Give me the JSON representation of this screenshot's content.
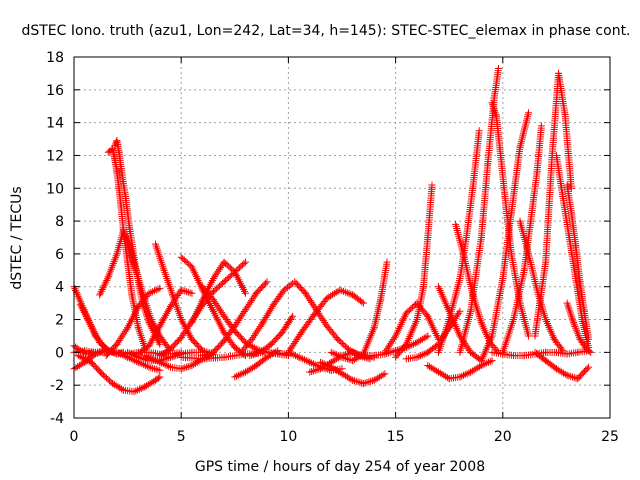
{
  "chart_data": {
    "type": "scatter",
    "title": "dSTEC Iono. truth (azu1, Lon=242, Lat=34, h=145): STEC-STEC_elemax in phase cont.",
    "xlabel": "GPS time / hours of day 254 of year 2008",
    "ylabel": "dSTEC  / TECUs",
    "xlim": [
      0,
      25
    ],
    "ylim": [
      -4,
      18
    ],
    "xticks": [
      0,
      5,
      10,
      15,
      20,
      25
    ],
    "yticks": [
      -4,
      -2,
      0,
      2,
      4,
      6,
      8,
      10,
      12,
      14,
      16,
      18
    ],
    "grid": true,
    "legend": "none",
    "marker": "+",
    "color": "#ff0000",
    "arcs": [
      {
        "x": [
          0.0,
          0.5,
          1.0,
          1.5,
          2.0,
          2.3
        ],
        "y": [
          4.0,
          2.5,
          1.0,
          0.2,
          -0.1,
          0.0
        ]
      },
      {
        "x": [
          0.0,
          0.3,
          0.6,
          0.9
        ],
        "y": [
          0.4,
          0.1,
          -0.1,
          0.0
        ]
      },
      {
        "x": [
          0.0,
          0.5,
          1.0,
          1.5,
          2.0,
          2.5,
          3.0,
          3.5,
          4.0
        ],
        "y": [
          -1.0,
          -0.6,
          -0.1,
          0.1,
          0.0,
          -0.3,
          -0.6,
          -0.9,
          -1.1
        ]
      },
      {
        "x": [
          0.2,
          0.8,
          1.3,
          1.8,
          2.3,
          2.8,
          3.3,
          3.8,
          4.0
        ],
        "y": [
          -0.2,
          -0.6,
          -1.3,
          -1.9,
          -2.3,
          -2.4,
          -2.1,
          -1.7,
          -1.5
        ]
      },
      {
        "x": [
          0.0,
          0.5,
          1.0,
          1.5,
          2.0,
          2.5,
          3.0,
          3.5,
          4.0,
          4.5,
          5.0
        ],
        "y": [
          0.0,
          0.1,
          0.0,
          0.1,
          0.0,
          -0.1,
          0.0,
          0.0,
          -0.1,
          -0.1,
          0.0
        ]
      },
      {
        "x": [
          0.3,
          0.8,
          1.2,
          1.6,
          2.0
        ],
        "y": [
          2.9,
          1.6,
          0.6,
          0.1,
          -0.1
        ]
      },
      {
        "x": [
          1.6,
          1.8,
          1.9,
          2.0,
          2.1,
          2.2,
          2.3,
          2.5,
          2.7,
          3.0,
          3.3
        ],
        "y": [
          12.2,
          12.4,
          11.8,
          11.0,
          10.0,
          8.8,
          7.5,
          5.5,
          3.5,
          1.5,
          0.3
        ]
      },
      {
        "x": [
          1.9,
          2.0,
          2.1,
          2.2,
          2.4,
          2.6,
          2.9,
          3.2,
          3.5,
          4.0
        ],
        "y": [
          12.6,
          12.9,
          12.2,
          11.2,
          9.5,
          7.5,
          5.0,
          3.0,
          1.8,
          0.5
        ]
      },
      {
        "x": [
          1.2,
          1.6,
          2.0,
          2.3,
          2.6,
          3.0
        ],
        "y": [
          3.5,
          4.6,
          6.0,
          7.4,
          6.5,
          4.5
        ]
      },
      {
        "x": [
          2.4,
          2.7,
          3.0,
          3.3,
          3.6,
          4.0,
          4.5
        ],
        "y": [
          7.0,
          5.8,
          4.5,
          3.2,
          2.0,
          1.0,
          0.1
        ]
      },
      {
        "x": [
          1.5,
          2.0,
          2.5,
          3.0,
          3.5,
          4.0
        ],
        "y": [
          -0.2,
          0.5,
          1.5,
          2.8,
          3.6,
          3.9
        ]
      },
      {
        "x": [
          2.5,
          3.0,
          3.5,
          4.0,
          4.5,
          5.0,
          5.5,
          6.0
        ],
        "y": [
          0.0,
          -0.3,
          -0.5,
          -0.5,
          -0.3,
          -0.1,
          0.0,
          0.0
        ]
      },
      {
        "x": [
          3.8,
          4.2,
          4.6,
          5.0,
          5.5,
          6.0,
          6.5
        ],
        "y": [
          6.6,
          5.0,
          3.5,
          2.0,
          0.8,
          0.1,
          -0.1
        ]
      },
      {
        "x": [
          3.0,
          3.5,
          4.0,
          4.5,
          5.0,
          5.5
        ],
        "y": [
          -0.1,
          0.4,
          1.6,
          2.8,
          3.8,
          3.6
        ]
      },
      {
        "x": [
          3.3,
          4.0,
          4.5,
          5.0,
          5.5,
          6.0,
          6.5
        ],
        "y": [
          -0.2,
          -0.6,
          -0.9,
          -1.0,
          -0.8,
          -0.4,
          -0.1
        ]
      },
      {
        "x": [
          5.0,
          5.5,
          6.0,
          6.5,
          7.0,
          7.5,
          8.0
        ],
        "y": [
          5.8,
          5.2,
          3.8,
          2.5,
          1.2,
          0.3,
          -0.2
        ]
      },
      {
        "x": [
          4.0,
          4.5,
          5.0,
          5.5,
          6.0,
          6.5,
          7.0,
          7.5,
          8.0
        ],
        "y": [
          -0.2,
          0.2,
          0.9,
          1.9,
          2.9,
          3.7,
          4.3,
          4.9,
          5.5
        ]
      },
      {
        "x": [
          6.0,
          6.5,
          7.0,
          7.5,
          8.0,
          8.5,
          9.0
        ],
        "y": [
          -0.2,
          0.0,
          0.7,
          1.6,
          2.6,
          3.6,
          4.3
        ]
      },
      {
        "x": [
          5.5,
          6.0,
          6.5,
          7.0,
          7.5,
          8.0
        ],
        "y": [
          1.8,
          3.2,
          4.5,
          5.5,
          4.9,
          3.6
        ]
      },
      {
        "x": [
          6.0,
          6.5,
          7.0,
          7.5,
          8.0,
          8.5,
          9.0,
          9.5,
          10.0
        ],
        "y": [
          4.0,
          3.2,
          2.2,
          1.3,
          0.6,
          0.2,
          0.0,
          -0.1,
          -0.2
        ]
      },
      {
        "x": [
          5.0,
          6.0,
          7.0,
          8.0,
          9.0,
          10.0
        ],
        "y": [
          -0.3,
          -0.4,
          -0.3,
          -0.1,
          0.0,
          -0.1
        ]
      },
      {
        "x": [
          7.5,
          8.0,
          8.5,
          9.0,
          9.5
        ],
        "y": [
          -1.5,
          -1.2,
          -0.8,
          -0.3,
          0.1
        ]
      },
      {
        "x": [
          7.8,
          8.3,
          8.8,
          9.3,
          9.8,
          10.2
        ],
        "y": [
          0.0,
          0.8,
          1.8,
          2.9,
          3.8,
          4.2
        ]
      },
      {
        "x": [
          8.2,
          8.7,
          9.2,
          9.7,
          10.0,
          10.2
        ],
        "y": [
          -0.2,
          0.0,
          0.5,
          1.2,
          1.8,
          2.2
        ]
      },
      {
        "x": [
          10.3,
          10.8,
          11.3,
          11.8,
          12.3,
          12.8,
          13.3,
          13.8
        ],
        "y": [
          4.3,
          3.6,
          2.6,
          1.6,
          0.8,
          0.2,
          -0.2,
          -0.4
        ]
      },
      {
        "x": [
          10.0,
          10.6,
          11.2,
          11.8,
          12.4,
          13.0,
          13.5
        ],
        "y": [
          0.0,
          1.2,
          2.3,
          3.3,
          3.8,
          3.5,
          3.0
        ]
      },
      {
        "x": [
          10.0,
          10.5,
          11.0,
          11.5,
          12.0,
          12.5
        ],
        "y": [
          0.0,
          -0.3,
          -0.6,
          -0.9,
          -1.1,
          -1.0
        ]
      },
      {
        "x": [
          11.0,
          11.5,
          12.0,
          12.5,
          13.0,
          13.5,
          14.0
        ],
        "y": [
          -1.2,
          -1.0,
          -0.6,
          -0.2,
          0.0,
          -0.2,
          -0.3
        ]
      },
      {
        "x": [
          11.5,
          12.0,
          12.5,
          13.0,
          13.5,
          14.0,
          14.5
        ],
        "y": [
          -0.6,
          -0.9,
          -1.3,
          -1.7,
          -1.9,
          -1.7,
          -1.3
        ]
      },
      {
        "x": [
          12.0,
          12.5,
          13.0,
          13.5,
          14.0,
          14.3,
          14.6
        ],
        "y": [
          0.0,
          -0.3,
          -0.5,
          -0.1,
          1.5,
          3.2,
          5.5
        ]
      },
      {
        "x": [
          13.5,
          14.0,
          14.5,
          15.0,
          15.5,
          16.0,
          16.5
        ],
        "y": [
          -0.2,
          -0.2,
          -0.1,
          0.1,
          0.3,
          0.6,
          1.0
        ]
      },
      {
        "x": [
          14.5,
          15.0,
          15.5,
          16.0,
          16.5,
          17.0
        ],
        "y": [
          0.0,
          1.0,
          2.4,
          3.0,
          2.2,
          0.8
        ]
      },
      {
        "x": [
          15.0,
          15.5,
          16.0,
          16.3,
          16.5,
          16.7
        ],
        "y": [
          -0.3,
          0.5,
          2.0,
          4.0,
          7.0,
          10.2
        ]
      },
      {
        "x": [
          15.5,
          16.0,
          16.5,
          17.0,
          17.5,
          18.0
        ],
        "y": [
          -0.4,
          -0.3,
          0.0,
          0.5,
          1.5,
          2.5
        ]
      },
      {
        "x": [
          16.5,
          17.0,
          17.5,
          18.0,
          18.5,
          19.0,
          19.5
        ],
        "y": [
          -0.8,
          -1.2,
          -1.6,
          -1.5,
          -1.2,
          -0.8,
          -0.5
        ]
      },
      {
        "x": [
          17.0,
          17.5,
          18.0,
          18.5,
          19.0
        ],
        "y": [
          4.0,
          2.5,
          1.0,
          0.0,
          -0.5
        ]
      },
      {
        "x": [
          17.0,
          17.5,
          18.0,
          18.3,
          18.6,
          18.9
        ],
        "y": [
          0.0,
          2.0,
          4.5,
          7.0,
          10.0,
          13.5
        ]
      },
      {
        "x": [
          17.8,
          18.2,
          18.6,
          19.0,
          19.4,
          19.8
        ],
        "y": [
          7.8,
          5.8,
          3.5,
          1.8,
          0.6,
          0.0
        ]
      },
      {
        "x": [
          18.0,
          18.5,
          19.0,
          19.3,
          19.6,
          19.8
        ],
        "y": [
          0.0,
          2.5,
          7.0,
          11.5,
          15.5,
          17.3
        ]
      },
      {
        "x": [
          19.5,
          19.7,
          19.9,
          20.1,
          20.4,
          20.8,
          21.2
        ],
        "y": [
          15.2,
          14.4,
          12.0,
          9.5,
          6.0,
          3.0,
          1.0
        ]
      },
      {
        "x": [
          19.0,
          19.5,
          20.0,
          20.4,
          20.8,
          21.2
        ],
        "y": [
          -0.5,
          1.0,
          4.5,
          8.5,
          12.5,
          14.6
        ]
      },
      {
        "x": [
          20.0,
          20.5,
          21.0,
          21.3,
          21.6,
          21.8
        ],
        "y": [
          0.0,
          2.0,
          5.0,
          8.0,
          11.0,
          13.8
        ]
      },
      {
        "x": [
          20.8,
          21.2,
          21.6,
          22.0,
          22.4,
          22.8
        ],
        "y": [
          8.0,
          6.0,
          3.8,
          2.0,
          0.8,
          0.1
        ]
      },
      {
        "x": [
          21.5,
          22.0,
          22.3,
          22.6,
          22.9,
          23.2
        ],
        "y": [
          1.0,
          5.5,
          12.0,
          17.0,
          14.5,
          10.0
        ]
      },
      {
        "x": [
          22.5,
          22.8,
          23.1,
          23.4,
          23.7,
          24.0
        ],
        "y": [
          12.0,
          9.5,
          7.0,
          4.5,
          2.0,
          0.3
        ]
      },
      {
        "x": [
          23.0,
          23.2,
          23.4,
          23.6,
          23.8,
          24.0
        ],
        "y": [
          10.2,
          8.5,
          6.5,
          4.3,
          2.5,
          0.8
        ]
      },
      {
        "x": [
          21.5,
          22.0,
          22.5,
          23.0,
          23.5,
          24.0
        ],
        "y": [
          0.0,
          -0.5,
          -1.0,
          -1.4,
          -1.6,
          -0.9
        ]
      },
      {
        "x": [
          19.5,
          20.0,
          20.5,
          21.0,
          21.5,
          22.0,
          22.5,
          23.0,
          23.5,
          24.0
        ],
        "y": [
          0.0,
          -0.1,
          -0.2,
          -0.2,
          -0.1,
          0.0,
          0.0,
          -0.1,
          0.0,
          0.1
        ]
      },
      {
        "x": [
          23.0,
          23.3,
          23.6,
          23.9,
          24.1
        ],
        "y": [
          3.0,
          1.8,
          0.8,
          0.2,
          0.0
        ]
      }
    ]
  }
}
